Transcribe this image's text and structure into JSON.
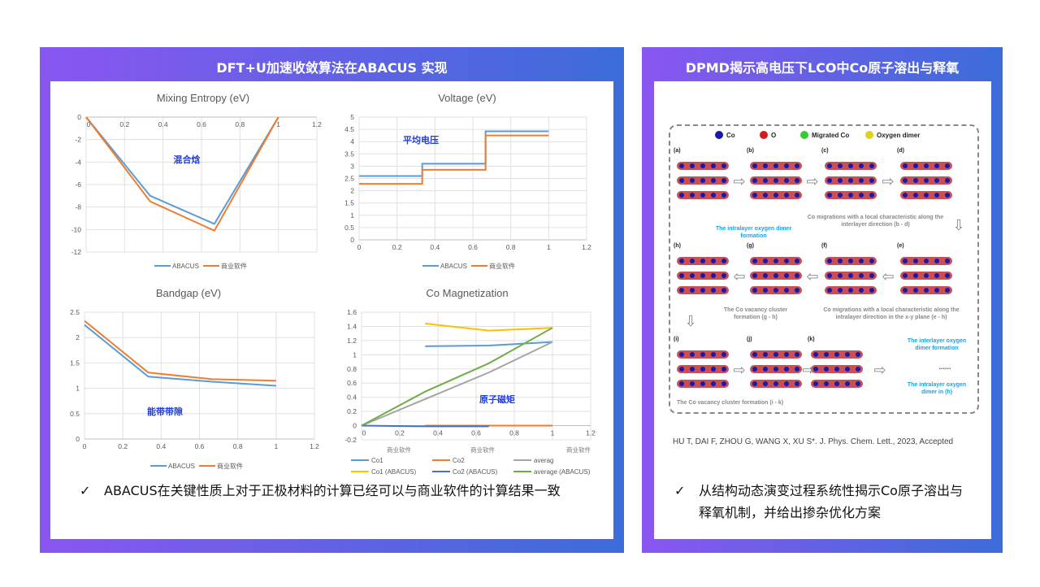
{
  "left_panel": {
    "title": "DFT+U加速收敛算法在ABACUS 实现",
    "bullet": "ABACUS在关键性质上对于正极材料的计算已经可以与商业软件的计算结果一致",
    "check_icon": "✓"
  },
  "right_panel": {
    "title": "DPMD揭示高电压下LCO中Co原子溶出与释氧",
    "figure": {
      "legend": [
        "Co",
        "O",
        "Migrated Co",
        "Oxygen dimer"
      ],
      "legend_colors": [
        "#1a1aa8",
        "#d61a1a",
        "#33cc33",
        "#e0d020"
      ],
      "panel_labels": [
        "(a)",
        "(b)",
        "(c)",
        "(d)",
        "(e)",
        "(f)",
        "(g)",
        "(h)",
        "(i)",
        "(j)",
        "(k)"
      ],
      "caption_bd": "Co migrations with a local characteristic along the interlayer direction (b - d)",
      "caption_eh": "Co migrations with a local characteristic along the intralayer direction in the x-y plane (e - h)",
      "caption_gh": "The Co vacancy cluster formation (g - h)",
      "caption_ik": "The Co vacancy cluster formation (i - k)",
      "note_h": "The intralayer oxygen dimer formation",
      "note_k1": "The interlayer oxygen dimer formation",
      "note_k2": "The intralayer oxygen dimer in (h)",
      "ellipsis": "......"
    },
    "citation": "HU T, DAI F, ZHOU G, WANG X, XU S*. J. Phys. Chem. Lett., 2023, Accepted",
    "bullet": "从结构动态演变过程系统性揭示Co原子溶出与释氧机制，并给出掺杂优化方案",
    "check_icon": "✓"
  },
  "colors": {
    "abacus": "#5b9bd5",
    "commercial": "#ed7d31",
    "co1_abacus": "#ffc000",
    "co2_abacus": "#4472c4",
    "avg": "#a5a5a5",
    "avg_abacus": "#70ad47",
    "annotation": "#1f3de0"
  },
  "chart_data": [
    {
      "type": "line",
      "title": "Mixing Entropy (eV)",
      "annotation": "混合焓",
      "xlim": [
        0,
        1.2
      ],
      "xticks": [
        0,
        0.2,
        0.4,
        0.6,
        0.8,
        1,
        1.2
      ],
      "ylim": [
        -12,
        0
      ],
      "yticks": [
        0,
        -2,
        -4,
        -6,
        -8,
        -10,
        -12
      ],
      "grid": true,
      "legend": "bottom",
      "series": [
        {
          "name": "ABACUS",
          "x": [
            0,
            0.333,
            0.667,
            1
          ],
          "y": [
            0,
            -7.0,
            -9.5,
            0
          ]
        },
        {
          "name": "商业软件",
          "x": [
            0,
            0.333,
            0.667,
            1
          ],
          "y": [
            0,
            -7.5,
            -10.1,
            0
          ]
        }
      ]
    },
    {
      "type": "line",
      "title": "Voltage (eV)",
      "annotation": "平均电压",
      "xlim": [
        0,
        1.2
      ],
      "xticks": [
        0,
        0.2,
        0.4,
        0.6,
        0.8,
        1,
        1.2
      ],
      "ylim": [
        0,
        5
      ],
      "yticks": [
        0,
        0.5,
        1,
        1.5,
        2,
        2.5,
        3,
        3.5,
        4,
        4.5,
        5
      ],
      "grid": true,
      "legend": "bottom",
      "series": [
        {
          "name": "ABACUS",
          "x": [
            0,
            0.333,
            0.333,
            0.667,
            0.667,
            1
          ],
          "y": [
            2.6,
            2.6,
            3.1,
            3.1,
            4.42,
            4.42
          ]
        },
        {
          "name": "商业软件",
          "x": [
            0,
            0.333,
            0.333,
            0.667,
            0.667,
            1
          ],
          "y": [
            2.28,
            2.28,
            2.85,
            2.85,
            4.25,
            4.25
          ]
        }
      ]
    },
    {
      "type": "line",
      "title": "Bandgap (eV)",
      "annotation": "能带带隙",
      "xlim": [
        0,
        1.2
      ],
      "xticks": [
        0,
        0.2,
        0.4,
        0.6,
        0.8,
        1,
        1.2
      ],
      "ylim": [
        0,
        2.5
      ],
      "yticks": [
        0,
        0.5,
        1,
        1.5,
        2,
        2.5
      ],
      "grid": true,
      "legend": "bottom",
      "series": [
        {
          "name": "ABACUS",
          "x": [
            0,
            0.333,
            0.667,
            1
          ],
          "y": [
            2.25,
            1.23,
            1.13,
            1.05
          ]
        },
        {
          "name": "商业软件",
          "x": [
            0,
            0.333,
            0.667,
            1
          ],
          "y": [
            2.33,
            1.31,
            1.18,
            1.15
          ]
        }
      ]
    },
    {
      "type": "line",
      "title": "Co Magnetization",
      "annotation": "原子磁矩",
      "xlim": [
        0,
        1.2
      ],
      "xticks": [
        0,
        0.2,
        0.4,
        0.6,
        0.8,
        1,
        1.2
      ],
      "ylim": [
        -0.2,
        1.6
      ],
      "yticks": [
        -0.2,
        0,
        0.2,
        0.4,
        0.6,
        0.8,
        1,
        1.2,
        1.4,
        1.6
      ],
      "grid": true,
      "legend": "bottom",
      "data_labels": [
        "商业软件",
        "商业软件",
        "商业软件"
      ],
      "series": [
        {
          "name": "Co1",
          "x": [
            0.333,
            0.667,
            1
          ],
          "y": [
            1.12,
            1.13,
            1.18
          ]
        },
        {
          "name": "Co2",
          "x": [
            0.333,
            0.667,
            1
          ],
          "y": [
            0,
            0,
            0
          ]
        },
        {
          "name": "averag",
          "x": [
            0,
            0.667,
            1
          ],
          "y": [
            0,
            0.75,
            1.18
          ]
        },
        {
          "name": "Co1 (ABACUS)",
          "x": [
            0.333,
            0.667,
            1
          ],
          "y": [
            1.44,
            1.34,
            1.38
          ]
        },
        {
          "name": "Co2 (ABACUS)",
          "x": [
            0,
            0.333,
            0.667
          ],
          "y": [
            0,
            -0.01,
            -0.01
          ]
        },
        {
          "name": "average (ABACUS)",
          "x": [
            0,
            0.333,
            0.667,
            1
          ],
          "y": [
            0,
            0.48,
            0.88,
            1.38
          ]
        }
      ]
    }
  ]
}
